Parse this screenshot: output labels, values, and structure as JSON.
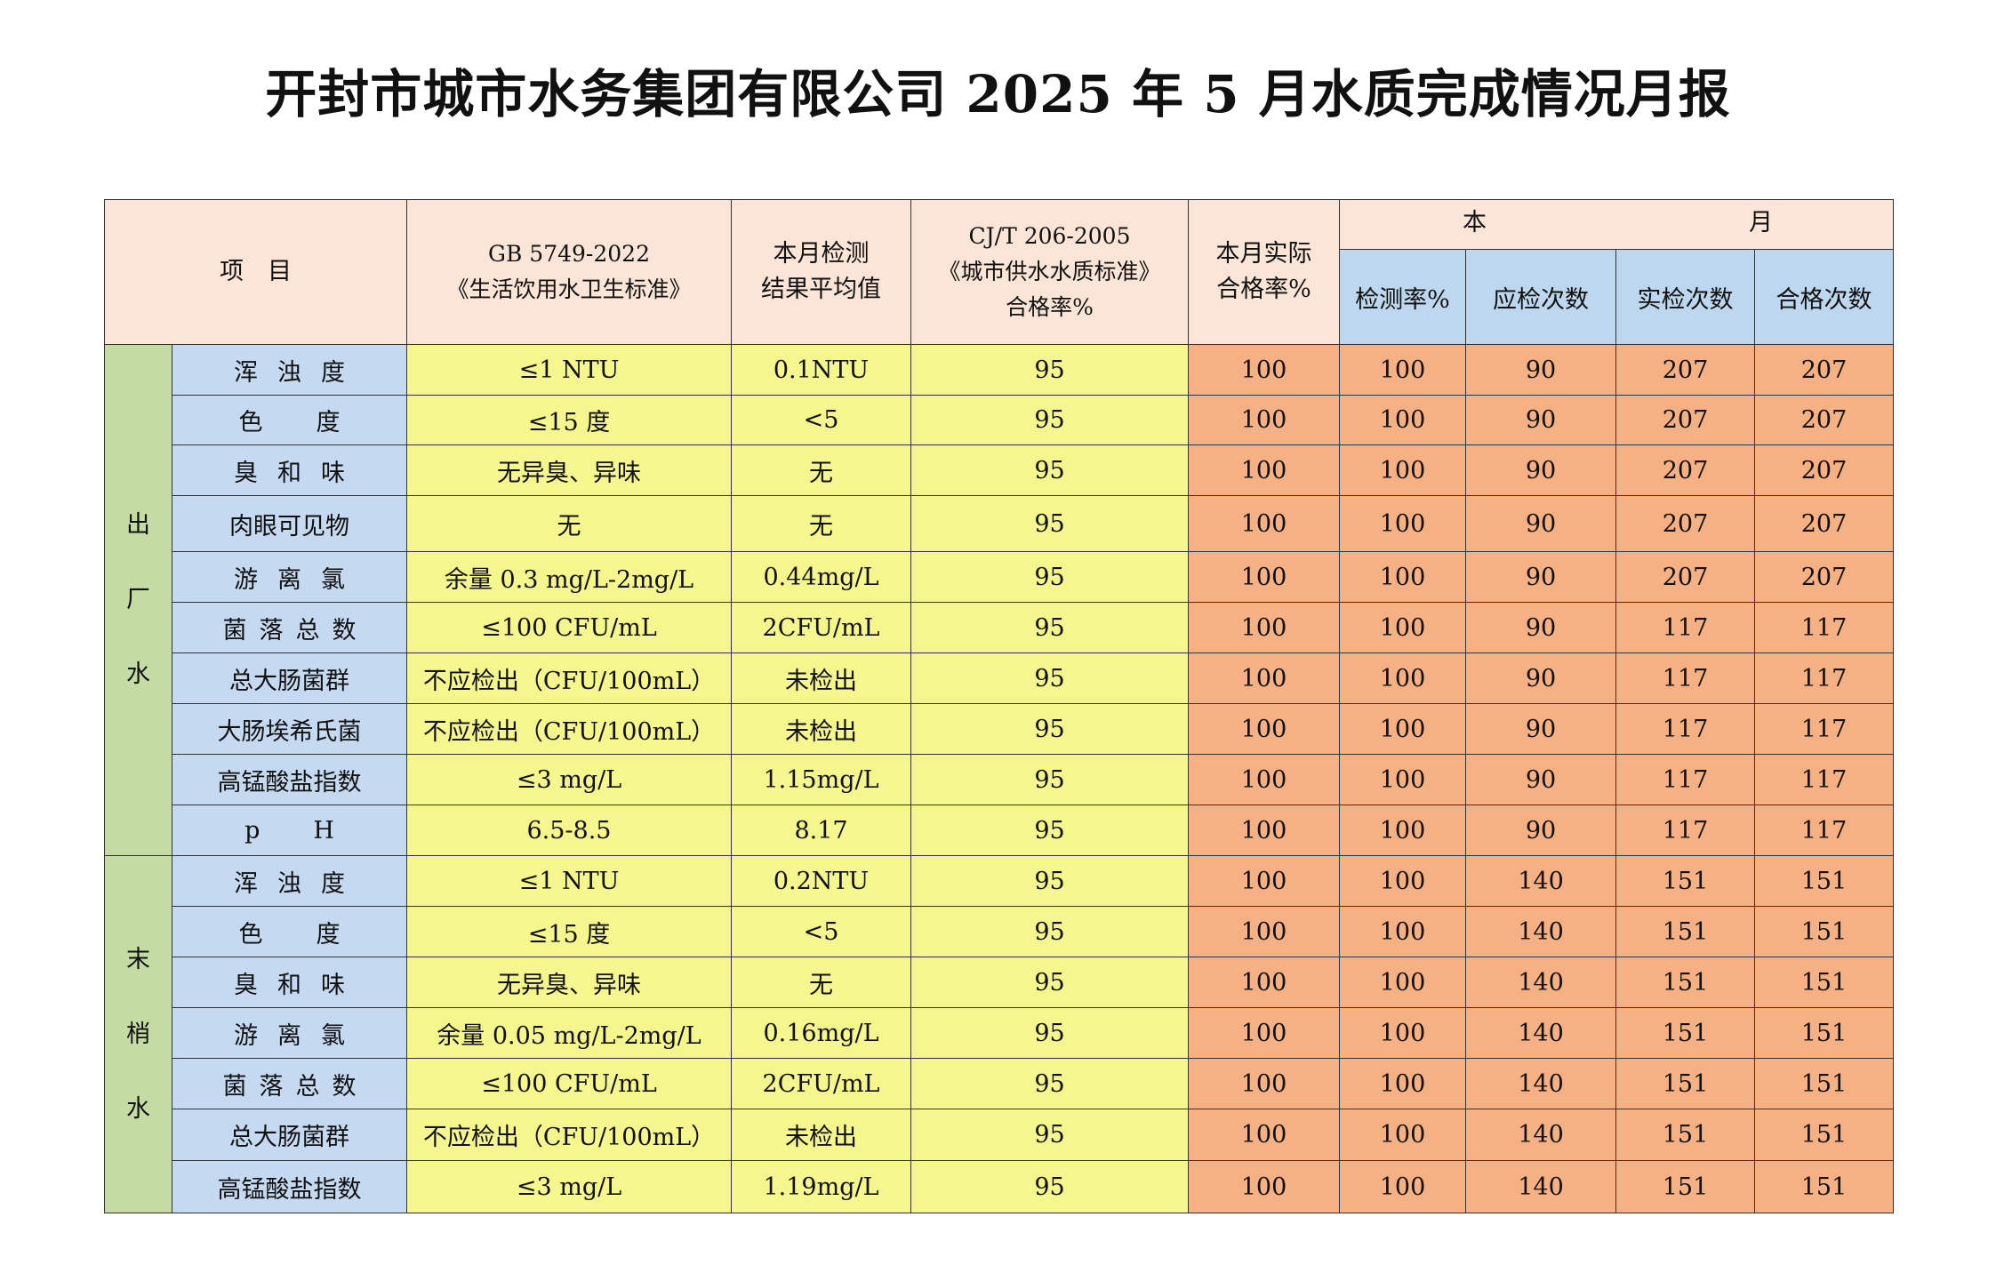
{
  "title": "开封市城市水务集团有限公司 2025 年 5 月水质完成情况月报",
  "header": {
    "item": "项　目",
    "gb_line1": "GB 5749-2022",
    "gb_line2": "《生活饮用水卫生标准》",
    "avg_line1": "本月检测",
    "avg_line2": "结果平均值",
    "cjt_line1": "CJ/T 206-2005",
    "cjt_line2": "《城市供水水质标准》",
    "cjt_line3": "合格率%",
    "actual_line1": "本月实际",
    "actual_line2": "合格率%",
    "month_left": "本",
    "month_right": "月",
    "detect_rate": "检测率%",
    "required_count": "应检次数",
    "actual_count": "实检次数",
    "pass_count": "合格次数"
  },
  "groups": [
    {
      "name_chars": [
        "出",
        "厂",
        "水"
      ],
      "rows": [
        {
          "item": "浑浊度",
          "std": "≤1 NTU",
          "avg": "0.1NTU",
          "cjt": "95",
          "actual": "100",
          "detect": "100",
          "required": "90",
          "checked": "207",
          "passed": "207"
        },
        {
          "item": "色度",
          "std": "≤15 度",
          "avg": "<5",
          "cjt": "95",
          "actual": "100",
          "detect": "100",
          "required": "90",
          "checked": "207",
          "passed": "207"
        },
        {
          "item": "臭和味",
          "std": "无异臭、异味",
          "avg": "无",
          "cjt": "95",
          "actual": "100",
          "detect": "100",
          "required": "90",
          "checked": "207",
          "passed": "207"
        },
        {
          "item": "肉眼可见物",
          "std": "无",
          "avg": "无",
          "cjt": "95",
          "actual": "100",
          "detect": "100",
          "required": "90",
          "checked": "207",
          "passed": "207"
        },
        {
          "item": "游离氯",
          "std": "余量 0.3 mg/L-2mg/L",
          "avg": "0.44mg/L",
          "cjt": "95",
          "actual": "100",
          "detect": "100",
          "required": "90",
          "checked": "207",
          "passed": "207"
        },
        {
          "item": "菌落总数",
          "std": "≤100 CFU/mL",
          "avg": "2CFU/mL",
          "cjt": "95",
          "actual": "100",
          "detect": "100",
          "required": "90",
          "checked": "117",
          "passed": "117"
        },
        {
          "item": "总大肠菌群",
          "std": "不应检出（CFU/100mL）",
          "avg": "未检出",
          "cjt": "95",
          "actual": "100",
          "detect": "100",
          "required": "90",
          "checked": "117",
          "passed": "117"
        },
        {
          "item": "大肠埃希氏菌",
          "std": "不应检出（CFU/100mL）",
          "avg": "未检出",
          "cjt": "95",
          "actual": "100",
          "detect": "100",
          "required": "90",
          "checked": "117",
          "passed": "117"
        },
        {
          "item": "高锰酸盐指数",
          "std": "≤3 mg/L",
          "avg": "1.15mg/L",
          "cjt": "95",
          "actual": "100",
          "detect": "100",
          "required": "90",
          "checked": "117",
          "passed": "117"
        },
        {
          "item": "pH",
          "std": "6.5-8.5",
          "avg": "8.17",
          "cjt": "95",
          "actual": "100",
          "detect": "100",
          "required": "90",
          "checked": "117",
          "passed": "117"
        }
      ]
    },
    {
      "name_chars": [
        "末",
        "梢",
        "水"
      ],
      "rows": [
        {
          "item": "浑浊度",
          "std": "≤1 NTU",
          "avg": "0.2NTU",
          "cjt": "95",
          "actual": "100",
          "detect": "100",
          "required": "140",
          "checked": "151",
          "passed": "151"
        },
        {
          "item": "色度",
          "std": "≤15 度",
          "avg": "<5",
          "cjt": "95",
          "actual": "100",
          "detect": "100",
          "required": "140",
          "checked": "151",
          "passed": "151"
        },
        {
          "item": "臭和味",
          "std": "无异臭、异味",
          "avg": "无",
          "cjt": "95",
          "actual": "100",
          "detect": "100",
          "required": "140",
          "checked": "151",
          "passed": "151"
        },
        {
          "item": "游离氯",
          "std": "余量 0.05 mg/L-2mg/L",
          "avg": "0.16mg/L",
          "cjt": "95",
          "actual": "100",
          "detect": "100",
          "required": "140",
          "checked": "151",
          "passed": "151"
        },
        {
          "item": "菌落总数",
          "std": "≤100 CFU/mL",
          "avg": "2CFU/mL",
          "cjt": "95",
          "actual": "100",
          "detect": "100",
          "required": "140",
          "checked": "151",
          "passed": "151"
        },
        {
          "item": "总大肠菌群",
          "std": "不应检出（CFU/100mL）",
          "avg": "未检出",
          "cjt": "95",
          "actual": "100",
          "detect": "100",
          "required": "140",
          "checked": "151",
          "passed": "151"
        },
        {
          "item": "高锰酸盐指数",
          "std": "≤3 mg/L",
          "avg": "1.19mg/L",
          "cjt": "95",
          "actual": "100",
          "detect": "100",
          "required": "140",
          "checked": "151",
          "passed": "151"
        }
      ]
    }
  ]
}
